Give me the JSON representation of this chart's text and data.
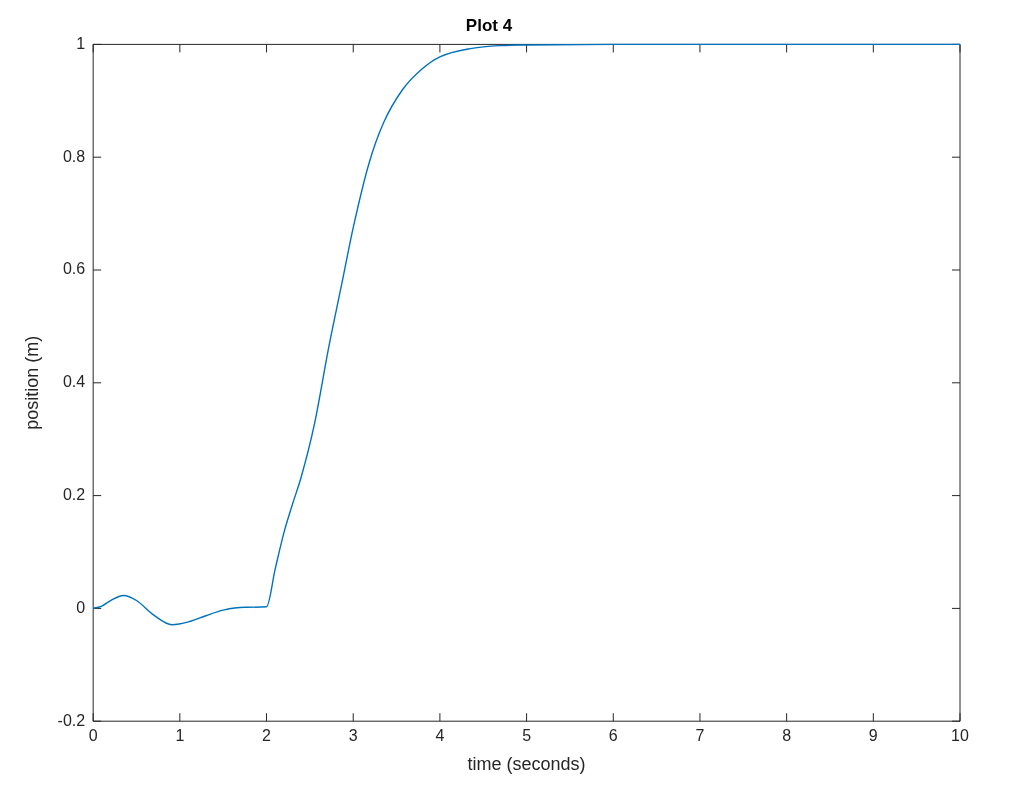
{
  "chart_data": {
    "type": "line",
    "title": "Plot 4",
    "xlabel": "time (seconds)",
    "ylabel": "position (m)",
    "xlim": [
      0,
      10
    ],
    "ylim": [
      -0.2,
      1
    ],
    "xticks": [
      0,
      1,
      2,
      3,
      4,
      5,
      6,
      7,
      8,
      9,
      10
    ],
    "yticks": [
      -0.2,
      0,
      0.2,
      0.4,
      0.6,
      0.8,
      1
    ],
    "legend": false,
    "marker": "none",
    "line_style": "solid",
    "series": [
      {
        "color": "#0072bd",
        "x": [
          0,
          0.1,
          0.2,
          0.35,
          0.5,
          0.7,
          0.91,
          1.1,
          1.3,
          1.5,
          1.75,
          2.0,
          2.1,
          2.2,
          2.3,
          2.4,
          2.55,
          2.72,
          2.87,
          3.0,
          3.18,
          3.35,
          3.57,
          3.79,
          4.0,
          4.37,
          4.7,
          5.0,
          6,
          7,
          8,
          9,
          10
        ],
        "values": [
          0,
          0.004,
          0.014,
          0.023,
          0.014,
          -0.012,
          -0.029,
          -0.024,
          -0.013,
          -0.003,
          0.002,
          0.003,
          0.07,
          0.134,
          0.185,
          0.233,
          0.325,
          0.465,
          0.577,
          0.675,
          0.788,
          0.861,
          0.92,
          0.956,
          0.978,
          0.993,
          0.998,
          0.999,
          1,
          1,
          1,
          1,
          1
        ]
      }
    ]
  }
}
